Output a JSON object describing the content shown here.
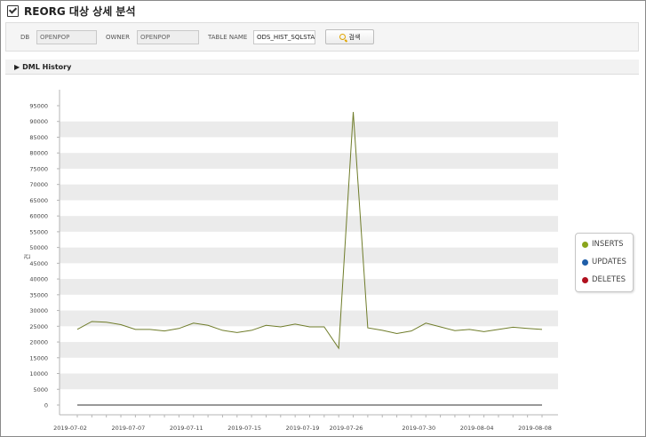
{
  "page": {
    "title": "REORG 대상 상세 분석",
    "search": {
      "db_label": "DB",
      "db_value": "OPENPOP",
      "owner_label": "OWNER",
      "owner_value": "OPENPOP",
      "table_label": "TABLE NAME",
      "table_value": "ODS_HIST_SQLSTA",
      "search_button": "검색"
    },
    "section_title": "DML History"
  },
  "colors": {
    "inserts": "#8aa51c",
    "updates": "#1f5ea8",
    "deletes": "#b0101e",
    "line": "#6f7c2a",
    "band": "#ebebeb"
  },
  "chart_data": {
    "type": "line",
    "ylabel": "건",
    "ylim": [
      0,
      95000
    ],
    "yticks": [
      0,
      5000,
      10000,
      15000,
      20000,
      25000,
      30000,
      35000,
      40000,
      45000,
      50000,
      55000,
      60000,
      65000,
      70000,
      75000,
      80000,
      85000,
      90000,
      95000
    ],
    "xtick_labels": [
      "2019-07-02",
      "2019-07-07",
      "2019-07-11",
      "2019-07-15",
      "2019-07-19",
      "2019-07-26",
      "2019-07-30",
      "2019-08-04",
      "2019-08-08"
    ],
    "xtick_indices": [
      0,
      4,
      8,
      12,
      16,
      19,
      24,
      28,
      32
    ],
    "x_count": 33,
    "legend_position": "right",
    "grid": "alternating-bands",
    "series": [
      {
        "name": "INSERTS",
        "values": [
          24000,
          26500,
          26300,
          25500,
          24000,
          24000,
          23500,
          24300,
          26000,
          25300,
          23700,
          23000,
          23700,
          25300,
          24800,
          25700,
          24800,
          24800,
          18000,
          93000,
          24500,
          23700,
          22700,
          23500,
          26000,
          24800,
          23600,
          24000,
          23300,
          24000,
          24700,
          24300,
          24000
        ]
      },
      {
        "name": "UPDATES",
        "values": [
          0,
          0,
          0,
          0,
          0,
          0,
          0,
          0,
          0,
          0,
          0,
          0,
          0,
          0,
          0,
          0,
          0,
          0,
          0,
          0,
          0,
          0,
          0,
          0,
          0,
          0,
          0,
          0,
          0,
          0,
          0,
          0,
          0
        ]
      },
      {
        "name": "DELETES",
        "values": [
          0,
          0,
          0,
          0,
          0,
          0,
          0,
          0,
          0,
          0,
          0,
          0,
          0,
          0,
          0,
          0,
          0,
          0,
          0,
          0,
          0,
          0,
          0,
          0,
          0,
          0,
          0,
          0,
          0,
          0,
          0,
          0,
          0
        ]
      }
    ]
  }
}
